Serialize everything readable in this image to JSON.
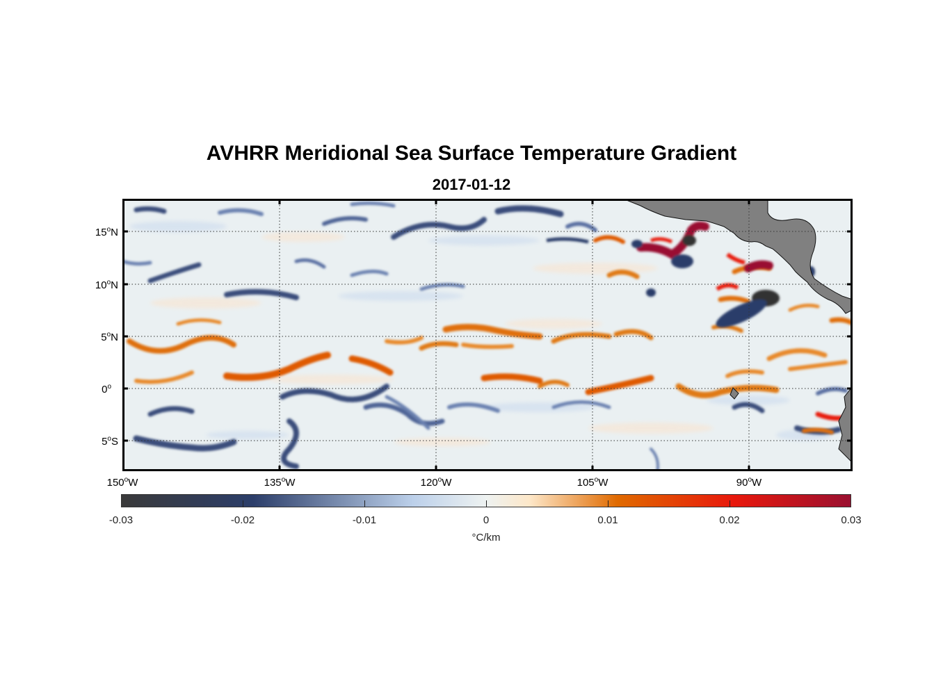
{
  "figure": {
    "title": "AVHRR Meridional Sea Surface Temperature Gradient",
    "subtitle": "2017-01-12"
  },
  "map": {
    "lat_labels": [
      {
        "deg": "15",
        "hemi": "N"
      },
      {
        "deg": "10",
        "hemi": "N"
      },
      {
        "deg": "5",
        "hemi": "N"
      },
      {
        "deg": "0",
        "hemi": ""
      },
      {
        "deg": "5",
        "hemi": "S"
      }
    ],
    "lon_labels": [
      {
        "deg": "150",
        "hemi": "W"
      },
      {
        "deg": "135",
        "hemi": "W"
      },
      {
        "deg": "120",
        "hemi": "W"
      },
      {
        "deg": "105",
        "hemi": "W"
      },
      {
        "deg": "90",
        "hemi": "W"
      }
    ],
    "land_color": "#808080",
    "ocean_color": "#e8eef0"
  },
  "colorbar": {
    "ticks": [
      "-0.03",
      "-0.02",
      "-0.01",
      "0",
      "0.01",
      "0.02",
      "0.03"
    ],
    "unit": "°C/km",
    "colors": {
      "min": "#3a3a3a",
      "neg_mid": "#2c3e6a",
      "neg_light": "#bcd0ea",
      "zero": "#eef2f1",
      "pos_light": "#fde7c8",
      "pos_mid": "#e06a00",
      "pos_strong": "#e8180c",
      "max": "#9a1030"
    }
  },
  "chart_data": {
    "type": "heatmap",
    "variable": "meridional SST gradient",
    "units": "°C/km",
    "xlim": [
      "150°W",
      "80°W"
    ],
    "ylim": [
      "8°S",
      "18°N"
    ],
    "clim": [
      -0.03,
      0.03
    ],
    "grid": true,
    "colorbar": "bottom"
  }
}
